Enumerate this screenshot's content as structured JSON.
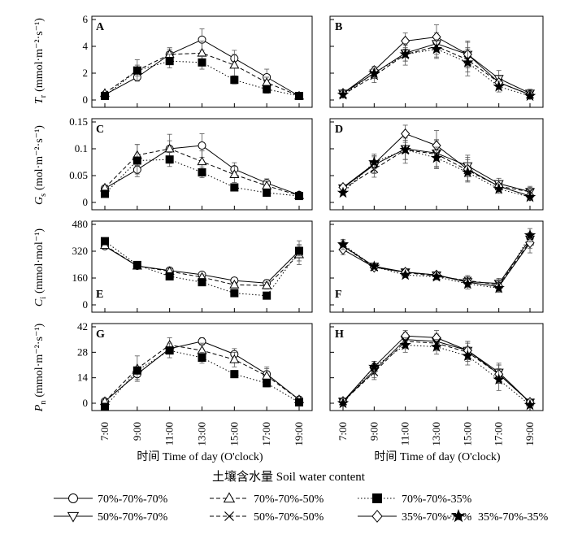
{
  "figure": {
    "x_axis_title": "时间  Time of day (O'clock)",
    "legend_title": "土壤含水量 Soil water content",
    "x_ticks": [
      "7:00",
      "9:00",
      "11:00",
      "13:00",
      "15:00",
      "17:00",
      "19:00"
    ]
  },
  "y_axis_labels": [
    {
      "text": "T r (mmol·m⁻²·s⁻¹)",
      "symbol": "T",
      "sub": "r",
      "unit": "(mmol·m⁻²·s⁻¹)"
    },
    {
      "text": "Gs (mol·m⁻²·s⁻¹)",
      "symbol": "G",
      "sub": "s",
      "unit": "(mol·m⁻²·s⁻¹)"
    },
    {
      "text": "Ci (mmol·mol⁻¹)",
      "symbol": "C",
      "sub": "i",
      "unit": "(mmol·mol⁻¹)"
    },
    {
      "text": "Pn (mmol·m⁻²·s⁻¹)",
      "symbol": "P",
      "sub": "n",
      "unit": "(mmol·m⁻²·s⁻¹)"
    }
  ],
  "legend": [
    {
      "label": "70%-70%-70%",
      "marker": "circle",
      "dash": "solid"
    },
    {
      "label": "70%-70%-50%",
      "marker": "triangle-up",
      "dash": "dashed"
    },
    {
      "label": "70%-70%-35%",
      "marker": "square",
      "dash": "dotted"
    },
    {
      "label": "50%-70%-70%",
      "marker": "triangle-down",
      "dash": "solid"
    },
    {
      "label": "50%-70%-50%",
      "marker": "x",
      "dash": "dashed"
    },
    {
      "label": "35%-70%-70%",
      "marker": "diamond",
      "dash": "solid"
    },
    {
      "label": "35%-70%-35%",
      "marker": "star",
      "dash": "dotted"
    }
  ],
  "chart_data": [
    {
      "type": "line",
      "panel": "A",
      "x": [
        "7:00",
        "9:00",
        "11:00",
        "13:00",
        "15:00",
        "17:00",
        "19:00"
      ],
      "ylim": [
        0,
        6
      ],
      "yticks": [
        0,
        2,
        4,
        6
      ],
      "series": [
        {
          "name": "70%-70%-70%",
          "values": [
            0.4,
            1.7,
            3.4,
            4.5,
            3.1,
            1.7,
            0.3
          ],
          "err": [
            0.1,
            0.2,
            0.5,
            0.8,
            0.6,
            0.6,
            0.1
          ]
        },
        {
          "name": "70%-70%-50%",
          "values": [
            0.5,
            2.2,
            3.4,
            3.5,
            2.6,
            1.3,
            0.3
          ],
          "err": [
            0.1,
            0.4,
            0.4,
            0.9,
            0.8,
            0.4,
            0.1
          ]
        },
        {
          "name": "70%-70%-35%",
          "values": [
            0.3,
            2.2,
            2.9,
            2.8,
            1.5,
            0.8,
            0.3
          ],
          "err": [
            0.1,
            0.8,
            0.5,
            0.5,
            0.3,
            0.3,
            0.1
          ]
        }
      ]
    },
    {
      "type": "line",
      "panel": "B",
      "x": [
        "7:00",
        "9:00",
        "11:00",
        "13:00",
        "15:00",
        "17:00",
        "19:00"
      ],
      "ylim": [
        0,
        6
      ],
      "yticks": [
        0,
        2,
        4,
        6
      ],
      "series": [
        {
          "name": "50%-70%-70%",
          "values": [
            0.5,
            2.0,
            3.5,
            4.2,
            3.4,
            1.6,
            0.5
          ],
          "err": [
            0.1,
            0.4,
            0.6,
            0.8,
            1.0,
            0.6,
            0.3
          ]
        },
        {
          "name": "50%-70%-50%",
          "values": [
            0.4,
            1.8,
            3.4,
            4.0,
            3.0,
            1.3,
            0.4
          ],
          "err": [
            0.1,
            0.5,
            0.5,
            0.8,
            0.9,
            0.5,
            0.3
          ]
        },
        {
          "name": "35%-70%-70%",
          "values": [
            0.5,
            2.2,
            4.4,
            4.7,
            3.4,
            1.3,
            0.4
          ],
          "err": [
            0.1,
            0.3,
            0.6,
            0.9,
            0.9,
            0.5,
            0.3
          ]
        },
        {
          "name": "35%-70%-35%",
          "values": [
            0.4,
            2.0,
            3.4,
            3.8,
            2.8,
            1.0,
            0.3
          ],
          "err": [
            0.1,
            0.3,
            0.8,
            0.7,
            1.0,
            0.4,
            0.2
          ]
        }
      ]
    },
    {
      "type": "line",
      "panel": "C",
      "x": [
        "7:00",
        "9:00",
        "11:00",
        "13:00",
        "15:00",
        "17:00",
        "19:00"
      ],
      "ylim": [
        0,
        0.15
      ],
      "yticks": [
        0,
        0.05,
        0.1,
        0.15
      ],
      "series": [
        {
          "name": "70%-70%-70%",
          "values": [
            0.026,
            0.061,
            0.1,
            0.106,
            0.062,
            0.036,
            0.014
          ],
          "err": [
            0.004,
            0.008,
            0.027,
            0.022,
            0.012,
            0.008,
            0.003
          ]
        },
        {
          "name": "70%-70%-50%",
          "values": [
            0.027,
            0.088,
            0.1,
            0.076,
            0.052,
            0.031,
            0.013
          ],
          "err": [
            0.004,
            0.02,
            0.015,
            0.02,
            0.015,
            0.008,
            0.003
          ]
        },
        {
          "name": "70%-70%-35%",
          "values": [
            0.016,
            0.078,
            0.08,
            0.056,
            0.028,
            0.018,
            0.012
          ],
          "err": [
            0.003,
            0.03,
            0.013,
            0.01,
            0.006,
            0.005,
            0.002
          ]
        }
      ]
    },
    {
      "type": "line",
      "panel": "D",
      "x": [
        "7:00",
        "9:00",
        "11:00",
        "13:00",
        "15:00",
        "17:00",
        "19:00"
      ],
      "ylim": [
        0,
        0.15
      ],
      "yticks": [
        0,
        0.05,
        0.1,
        0.15
      ],
      "series": [
        {
          "name": "50%-70%-70%",
          "values": [
            0.027,
            0.07,
            0.1,
            0.092,
            0.068,
            0.035,
            0.02
          ],
          "err": [
            0.004,
            0.015,
            0.02,
            0.025,
            0.02,
            0.01,
            0.008
          ]
        },
        {
          "name": "50%-70%-50%",
          "values": [
            0.025,
            0.062,
            0.098,
            0.09,
            0.06,
            0.03,
            0.02
          ],
          "err": [
            0.004,
            0.015,
            0.025,
            0.025,
            0.02,
            0.01,
            0.01
          ]
        },
        {
          "name": "35%-70%-70%",
          "values": [
            0.028,
            0.072,
            0.128,
            0.106,
            0.062,
            0.03,
            0.012
          ],
          "err": [
            0.004,
            0.018,
            0.016,
            0.028,
            0.022,
            0.01,
            0.004
          ]
        },
        {
          "name": "35%-70%-35%",
          "values": [
            0.018,
            0.075,
            0.098,
            0.083,
            0.056,
            0.025,
            0.01
          ],
          "err": [
            0.003,
            0.012,
            0.018,
            0.02,
            0.018,
            0.008,
            0.003
          ]
        }
      ]
    },
    {
      "type": "line",
      "panel": "E",
      "x": [
        "7:00",
        "9:00",
        "11:00",
        "13:00",
        "15:00",
        "17:00",
        "19:00"
      ],
      "ylim": [
        0,
        480
      ],
      "yticks": [
        0,
        160,
        320,
        480
      ],
      "series": [
        {
          "name": "70%-70%-70%",
          "values": [
            350,
            232,
            205,
            180,
            145,
            130,
            322
          ],
          "err": [
            15,
            15,
            15,
            15,
            15,
            20,
            60
          ]
        },
        {
          "name": "70%-70%-50%",
          "values": [
            355,
            232,
            200,
            165,
            120,
            115,
            300
          ],
          "err": [
            15,
            15,
            15,
            15,
            15,
            20,
            60
          ]
        },
        {
          "name": "70%-70%-35%",
          "values": [
            380,
            238,
            170,
            135,
            70,
            55,
            322
          ],
          "err": [
            15,
            15,
            15,
            20,
            10,
            8,
            30
          ]
        }
      ]
    },
    {
      "type": "line",
      "panel": "F",
      "x": [
        "7:00",
        "9:00",
        "11:00",
        "13:00",
        "15:00",
        "17:00",
        "19:00"
      ],
      "ylim": [
        0,
        480
      ],
      "yticks": [
        0,
        160,
        320,
        480
      ],
      "series": [
        {
          "name": "50%-70%-70%",
          "values": [
            352,
            230,
            196,
            178,
            138,
            128,
            392
          ],
          "err": [
            30,
            15,
            15,
            15,
            30,
            30,
            40
          ]
        },
        {
          "name": "50%-70%-50%",
          "values": [
            350,
            225,
            193,
            170,
            145,
            120,
            378
          ],
          "err": [
            30,
            15,
            15,
            15,
            30,
            30,
            40
          ]
        },
        {
          "name": "35%-70%-70%",
          "values": [
            330,
            224,
            195,
            178,
            135,
            110,
            370
          ],
          "err": [
            30,
            15,
            15,
            15,
            30,
            30,
            60
          ]
        },
        {
          "name": "35%-70%-35%",
          "values": [
            360,
            228,
            178,
            168,
            125,
            100,
            415
          ],
          "err": [
            30,
            15,
            15,
            15,
            30,
            25,
            40
          ]
        }
      ]
    },
    {
      "type": "line",
      "panel": "G",
      "x": [
        "7:00",
        "9:00",
        "11:00",
        "13:00",
        "15:00",
        "17:00",
        "19:00"
      ],
      "ylim": [
        0,
        42
      ],
      "yticks": [
        0,
        14,
        28,
        42
      ],
      "series": [
        {
          "name": "70%-70%-70%",
          "values": [
            1,
            16,
            30,
            34,
            27,
            16,
            2
          ],
          "err": [
            1,
            3,
            3,
            2,
            3,
            4,
            1
          ]
        },
        {
          "name": "70%-70%-50%",
          "values": [
            1,
            19,
            32,
            29,
            24,
            15,
            2
          ],
          "err": [
            1,
            7,
            4,
            4,
            4,
            4,
            1
          ]
        },
        {
          "name": "70%-70%-35%",
          "values": [
            -2,
            18,
            29,
            25,
            16,
            11,
            0.5
          ],
          "err": [
            1,
            2,
            4,
            3,
            2,
            2,
            1
          ]
        }
      ]
    },
    {
      "type": "line",
      "panel": "H",
      "x": [
        "7:00",
        "9:00",
        "11:00",
        "13:00",
        "15:00",
        "17:00",
        "19:00"
      ],
      "ylim": [
        0,
        42
      ],
      "yticks": [
        0,
        14,
        28,
        42
      ],
      "series": [
        {
          "name": "50%-70%-70%",
          "values": [
            1,
            18,
            35,
            34,
            29,
            17,
            0.5
          ],
          "err": [
            1,
            4,
            4,
            4,
            5,
            5,
            1
          ]
        },
        {
          "name": "50%-70%-50%",
          "values": [
            1,
            17,
            34,
            33,
            28,
            16,
            0.5
          ],
          "err": [
            1,
            4,
            4,
            4,
            5,
            5,
            1
          ]
        },
        {
          "name": "35%-70%-70%",
          "values": [
            1,
            20,
            37,
            36,
            29,
            16,
            0.5
          ],
          "err": [
            1,
            3,
            3,
            4,
            5,
            5,
            1
          ]
        },
        {
          "name": "35%-70%-35%",
          "values": [
            0,
            20,
            32,
            31,
            26,
            13,
            -1
          ],
          "err": [
            1,
            3,
            4,
            4,
            5,
            6,
            1
          ]
        }
      ]
    }
  ]
}
